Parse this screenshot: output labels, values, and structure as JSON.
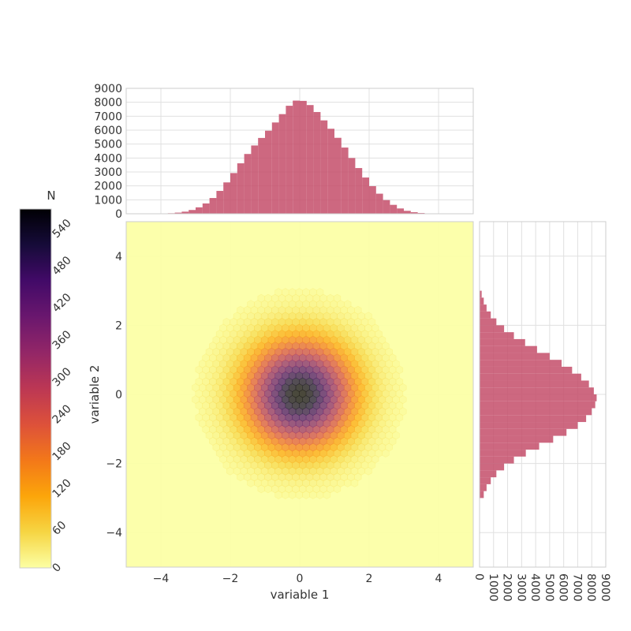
{
  "chart_data": [
    {
      "id": "hexbin-main",
      "type": "heatmap",
      "subtype": "hexbin",
      "xlabel": "variable 1",
      "ylabel": "variable 2",
      "xlim": [
        -5,
        5
      ],
      "ylim": [
        -5,
        5
      ],
      "xticks": [
        -4,
        -2,
        0,
        2,
        4
      ],
      "yticks": [
        -4,
        -2,
        0,
        2,
        4
      ],
      "xtick_labels": [
        "−4",
        "−2",
        "0",
        "2",
        "4"
      ],
      "ytick_labels": [
        "−4",
        "−2",
        "0",
        "2",
        "4"
      ],
      "distribution": {
        "mean": [
          0,
          0
        ],
        "std": [
          1,
          1
        ],
        "peak_count": 570
      },
      "colormap": "inferno_r",
      "grid": true
    },
    {
      "id": "colorbar",
      "type": "colorbar",
      "title": "N",
      "range": [
        0,
        580
      ],
      "ticks": [
        0,
        60,
        120,
        180,
        240,
        300,
        360,
        420,
        480,
        540
      ],
      "tick_labels": [
        "0",
        "60",
        "120",
        "180",
        "240",
        "300",
        "360",
        "420",
        "480",
        "540"
      ],
      "colormap": "inferno_r"
    },
    {
      "id": "hist-top",
      "type": "bar",
      "orientation": "vertical",
      "xlim": [
        -5,
        5
      ],
      "ylim": [
        0,
        9000
      ],
      "yticks": [
        0,
        1000,
        2000,
        3000,
        4000,
        5000,
        6000,
        7000,
        8000,
        9000
      ],
      "ytick_labels": [
        "0",
        "1000",
        "2000",
        "3000",
        "4000",
        "5000",
        "6000",
        "7000",
        "8000",
        "9000"
      ],
      "bin_edges": [
        -4.0,
        -3.8,
        -3.6,
        -3.4,
        -3.2,
        -3.0,
        -2.8,
        -2.6,
        -2.4,
        -2.2,
        -2.0,
        -1.8,
        -1.6,
        -1.4,
        -1.2,
        -1.0,
        -0.8,
        -0.6,
        -0.4,
        -0.2,
        0.0,
        0.2,
        0.4,
        0.6,
        0.8,
        1.0,
        1.2,
        1.4,
        1.6,
        1.8,
        2.0,
        2.2,
        2.4,
        2.6,
        2.8,
        3.0,
        3.2,
        3.4,
        3.6,
        3.8,
        4.0
      ],
      "values": [
        20,
        40,
        80,
        150,
        270,
        460,
        740,
        1130,
        1640,
        2250,
        2920,
        3620,
        4290,
        4900,
        5440,
        5960,
        6550,
        7150,
        7750,
        8120,
        8100,
        7800,
        7300,
        6700,
        6100,
        5450,
        4750,
        4000,
        3280,
        2600,
        1980,
        1440,
        980,
        640,
        380,
        210,
        110,
        55,
        25,
        10
      ],
      "color": "#c44e6a",
      "grid": true
    },
    {
      "id": "hist-right",
      "type": "bar",
      "orientation": "horizontal",
      "ylim": [
        -5,
        5
      ],
      "xlim": [
        0,
        9000
      ],
      "xticks": [
        0,
        1000,
        2000,
        3000,
        4000,
        5000,
        6000,
        7000,
        8000,
        9000
      ],
      "xtick_labels": [
        "0",
        "1000",
        "2000",
        "3000",
        "4000",
        "5000",
        "6000",
        "7000",
        "8000",
        "9000"
      ],
      "bin_edges": [
        -3.0,
        -2.8,
        -2.6,
        -2.4,
        -2.2,
        -2.0,
        -1.8,
        -1.6,
        -1.4,
        -1.2,
        -1.0,
        -0.8,
        -0.6,
        -0.4,
        -0.2,
        0.0,
        0.2,
        0.4,
        0.6,
        0.8,
        1.0,
        1.2,
        1.4,
        1.6,
        1.8,
        2.0,
        2.2,
        2.4,
        2.6,
        2.8,
        3.0
      ],
      "values": [
        300,
        500,
        800,
        1200,
        1750,
        2450,
        3300,
        4250,
        5250,
        6200,
        7000,
        7600,
        8000,
        8250,
        8350,
        8150,
        7800,
        7250,
        6600,
        5850,
        5000,
        4100,
        3250,
        2450,
        1750,
        1200,
        800,
        500,
        300,
        150
      ],
      "color": "#c44e6a",
      "grid": true
    }
  ]
}
